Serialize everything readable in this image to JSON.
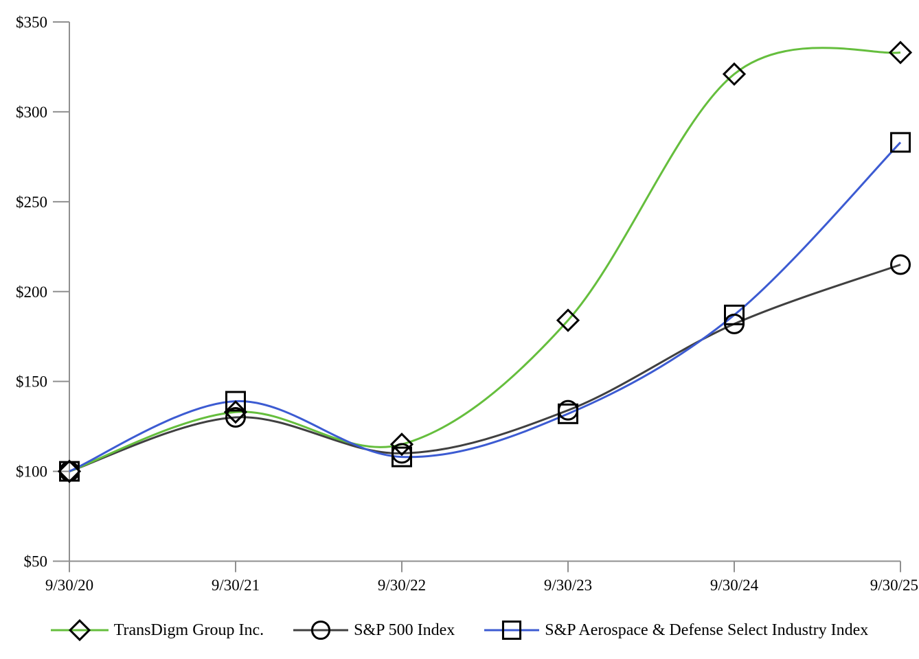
{
  "page": {
    "background": "#ffffff",
    "description": "Cumulative total return stock performance line chart"
  },
  "chart_data": {
    "type": "line",
    "title": "",
    "xlabel": "",
    "ylabel": "",
    "x": [
      "9/30/20",
      "9/30/21",
      "9/30/22",
      "9/30/23",
      "9/30/24",
      "9/30/25"
    ],
    "y_ticks": [
      50,
      100,
      150,
      200,
      250,
      300,
      350
    ],
    "y_tick_labels": [
      "$50",
      "$100",
      "$150",
      "$200",
      "$250",
      "$300",
      "$350"
    ],
    "ylim": [
      50,
      350
    ],
    "grid": false,
    "line_style": "smooth",
    "legend_position": "bottom",
    "axis_color": "#8f8f8f",
    "marker_stroke": "#000000",
    "series": [
      {
        "name": "TransDigm Group Inc.",
        "marker": "diamond",
        "color": "#65be3d",
        "values": [
          100,
          133,
          115,
          184,
          321,
          333
        ]
      },
      {
        "name": "S&P 500 Index",
        "marker": "circle",
        "color": "#404040",
        "values": [
          100,
          130,
          110,
          134,
          182,
          215
        ]
      },
      {
        "name": "S&P Aerospace & Defense Select Industry Index",
        "marker": "square",
        "color": "#3c5bd2",
        "values": [
          100,
          139,
          108,
          132,
          187,
          283
        ]
      }
    ]
  }
}
